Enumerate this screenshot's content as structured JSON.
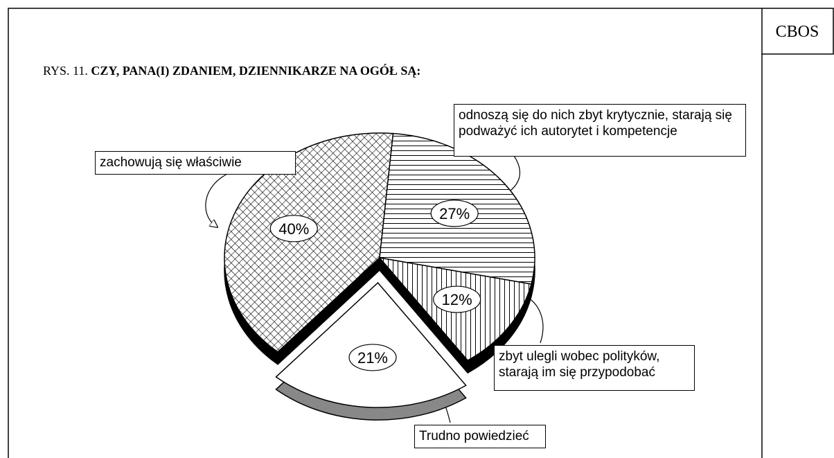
{
  "source": "CBOS",
  "chart_data": {
    "type": "pie",
    "figure_label": "RYS. 11.",
    "title": "CZY, PANA(I) ZDANIEM, DZIENNIKARZE NA OGÓŁ SĄ:",
    "categories": [
      "zachowują się właściwie",
      "odnoszą się do nich zbyt krytycznie, starają się podważyć ich autorytet i kompetencje",
      "zbyt ulegli wobec polityków, starają im się przypodobać",
      "Trudno powiedzieć"
    ],
    "values": [
      40,
      27,
      12,
      21
    ],
    "value_labels": [
      "40%",
      "27%",
      "12%",
      "21%"
    ],
    "patterns": [
      "crosshatch",
      "horizontal",
      "vertical",
      "none"
    ],
    "explode": [
      false,
      false,
      false,
      true
    ]
  }
}
